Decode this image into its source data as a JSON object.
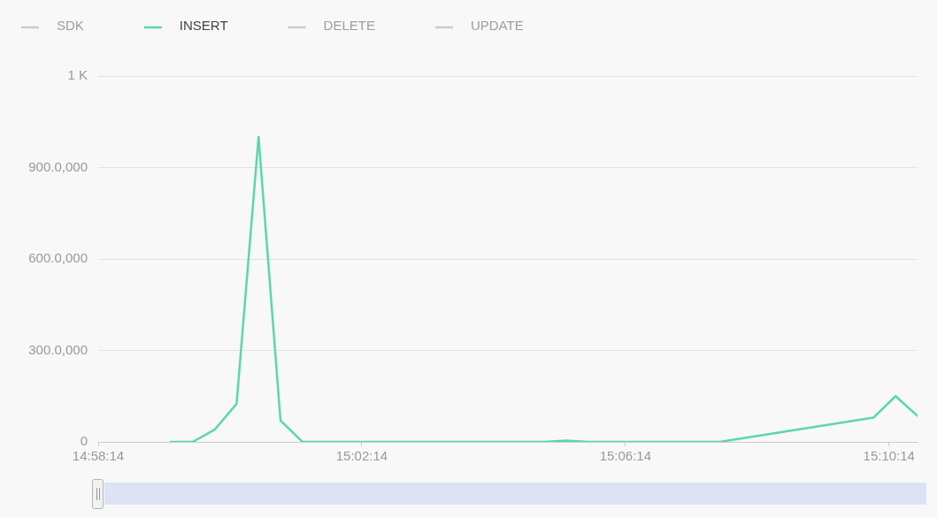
{
  "chart_data": {
    "type": "line",
    "x": [
      14.988889,
      14.994444,
      15.0,
      15.005556,
      15.011111,
      15.016667,
      15.022222,
      15.083333,
      15.088889,
      15.094444,
      15.127778,
      15.166667,
      15.172222,
      15.177778
    ],
    "series": [
      {
        "name": "SDK",
        "color": "#cccccc",
        "values": [
          null,
          null,
          null,
          null,
          null,
          null,
          null,
          null,
          null,
          null,
          null,
          null,
          null,
          null
        ]
      },
      {
        "name": "INSERT",
        "color": "#5ad8a6",
        "values": [
          0,
          0,
          40,
          125,
          1000,
          70,
          0,
          0,
          4,
          0,
          0,
          80,
          150,
          85
        ]
      },
      {
        "name": "DELETE",
        "color": "#cccccc",
        "values": [
          null,
          null,
          null,
          null,
          null,
          null,
          null,
          null,
          null,
          null,
          null,
          null,
          null,
          null
        ]
      },
      {
        "name": "UPDATE",
        "color": "#cccccc",
        "values": [
          null,
          null,
          null,
          null,
          null,
          null,
          null,
          null,
          null,
          null,
          null,
          null,
          null,
          null
        ]
      }
    ],
    "xlim": [
      14.970556,
      15.177778
    ],
    "xticks": [
      {
        "value": 14.970556,
        "label": "14:58:14"
      },
      {
        "value": 15.037222,
        "label": "15:02:14"
      },
      {
        "value": 15.103889,
        "label": "15:06:14"
      },
      {
        "value": 15.170556,
        "label": "15:10:14"
      }
    ],
    "ylim": [
      0,
      1200
    ],
    "yticks": [
      0,
      {
        "value": 300,
        "label": "300.0,000"
      },
      {
        "value": 600,
        "label": "600.0,000"
      },
      {
        "value": 900,
        "label": "900.0,000"
      },
      {
        "value": 1200,
        "label": "1 K"
      }
    ],
    "grid": "y",
    "legend": "top left",
    "marker": "none",
    "line_style": "solid"
  }
}
